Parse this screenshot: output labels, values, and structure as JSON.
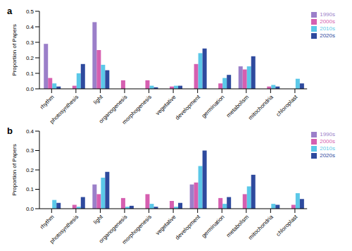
{
  "chart_data": [
    {
      "type": "bar",
      "title": "a",
      "ylabel": "Proportion of Papers",
      "categories": [
        "rhythm",
        "photosynthesis",
        "light",
        "organogenesis",
        "morphogenesis",
        "vegetative",
        "development",
        "germination",
        "metabolism",
        "mitochondria",
        "chloroplast"
      ],
      "series": [
        {
          "name": "1990s",
          "color": "#9b7fc9",
          "values": [
            0.29,
            0,
            0.43,
            0,
            0,
            0,
            0,
            0,
            0.145,
            0,
            0
          ]
        },
        {
          "name": "2000s",
          "color": "#d65fb0",
          "values": [
            0.07,
            0.02,
            0.25,
            0.055,
            0.055,
            0.015,
            0.16,
            0.035,
            0.125,
            0.015,
            0
          ]
        },
        {
          "name": "2010s",
          "color": "#5bc8e8",
          "values": [
            0.035,
            0.1,
            0.155,
            0,
            0.02,
            0.02,
            0.23,
            0.07,
            0.145,
            0.025,
            0.065
          ]
        },
        {
          "name": "2020s",
          "color": "#2e4a9e",
          "values": [
            0.015,
            0.16,
            0.12,
            0,
            0.01,
            0.02,
            0.26,
            0.09,
            0.21,
            0.015,
            0.035
          ]
        }
      ],
      "ylim": [
        0,
        0.5
      ],
      "yticks": [
        {
          "value": 0,
          "label": "0.0"
        },
        0.1,
        0.2,
        0.3,
        0.4,
        0.5
      ],
      "grid": false,
      "legend": "upper-right"
    },
    {
      "type": "bar",
      "title": "b",
      "ylabel": "Proportion of Papers",
      "categories": [
        "rhythm",
        "photosynthesis",
        "light",
        "organogenesis",
        "morphogenesis",
        "vegetative",
        "development",
        "germination",
        "metabolism",
        "mitochondria",
        "chloroplast"
      ],
      "series": [
        {
          "name": "1990s",
          "color": "#9b7fc9",
          "values": [
            0,
            0,
            0.125,
            0,
            0,
            0,
            0.125,
            0,
            0,
            0,
            0
          ]
        },
        {
          "name": "2000s",
          "color": "#d65fb0",
          "values": [
            0,
            0.02,
            0.075,
            0.055,
            0.075,
            0.04,
            0.135,
            0.055,
            0.075,
            0,
            0.02
          ]
        },
        {
          "name": "2010s",
          "color": "#5bc8e8",
          "values": [
            0.045,
            0.01,
            0.16,
            0.01,
            0.025,
            0.01,
            0.22,
            0.025,
            0.115,
            0.025,
            0.08
          ]
        },
        {
          "name": "2020s",
          "color": "#2e4a9e",
          "values": [
            0.03,
            0.06,
            0.19,
            0.015,
            0.01,
            0.03,
            0.3,
            0.06,
            0.175,
            0.02,
            0.05
          ]
        }
      ],
      "ylim": [
        0,
        0.4
      ],
      "yticks": [
        {
          "value": 0,
          "label": "0.0"
        },
        0.1,
        0.2,
        0.3,
        0.4
      ],
      "grid": false,
      "legend": "upper-right"
    }
  ]
}
